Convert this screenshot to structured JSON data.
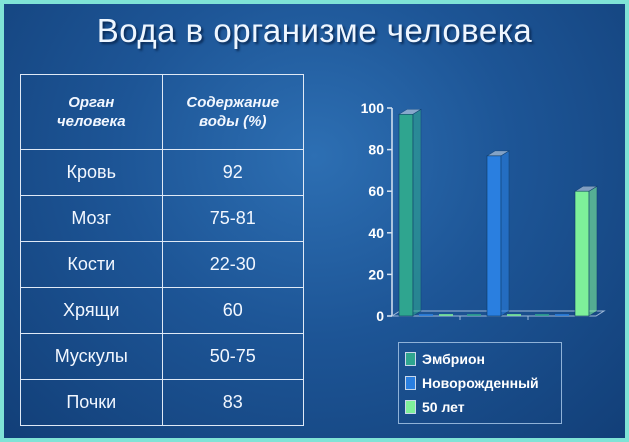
{
  "slide": {
    "title": "Вода в организме человека"
  },
  "table": {
    "headers": [
      "Орган\nчеловека",
      "Содержание\nводы (%)"
    ],
    "rows": [
      [
        "Кровь",
        "92"
      ],
      [
        "Мозг",
        "75-81"
      ],
      [
        "Кости",
        "22-30"
      ],
      [
        "Хрящи",
        "60"
      ],
      [
        "Мускулы",
        "50-75"
      ],
      [
        "Почки",
        "83"
      ]
    ]
  },
  "chart_data": {
    "type": "bar",
    "categories": [
      "",
      "",
      ""
    ],
    "series": [
      {
        "name": "Эмбрион",
        "values": [
          97,
          0,
          0
        ],
        "color": "#2fa58f"
      },
      {
        "name": "Новорожденный",
        "values": [
          0,
          77,
          0
        ],
        "color": "#2a7fe0"
      },
      {
        "name": "50 лет",
        "values": [
          0,
          0,
          60
        ],
        "color": "#7ef09a"
      }
    ],
    "y_ticks": [
      "0",
      "20",
      "40",
      "60",
      "80",
      "100"
    ],
    "ylim": [
      0,
      100
    ],
    "grid": false,
    "legend_position": "bottom"
  }
}
